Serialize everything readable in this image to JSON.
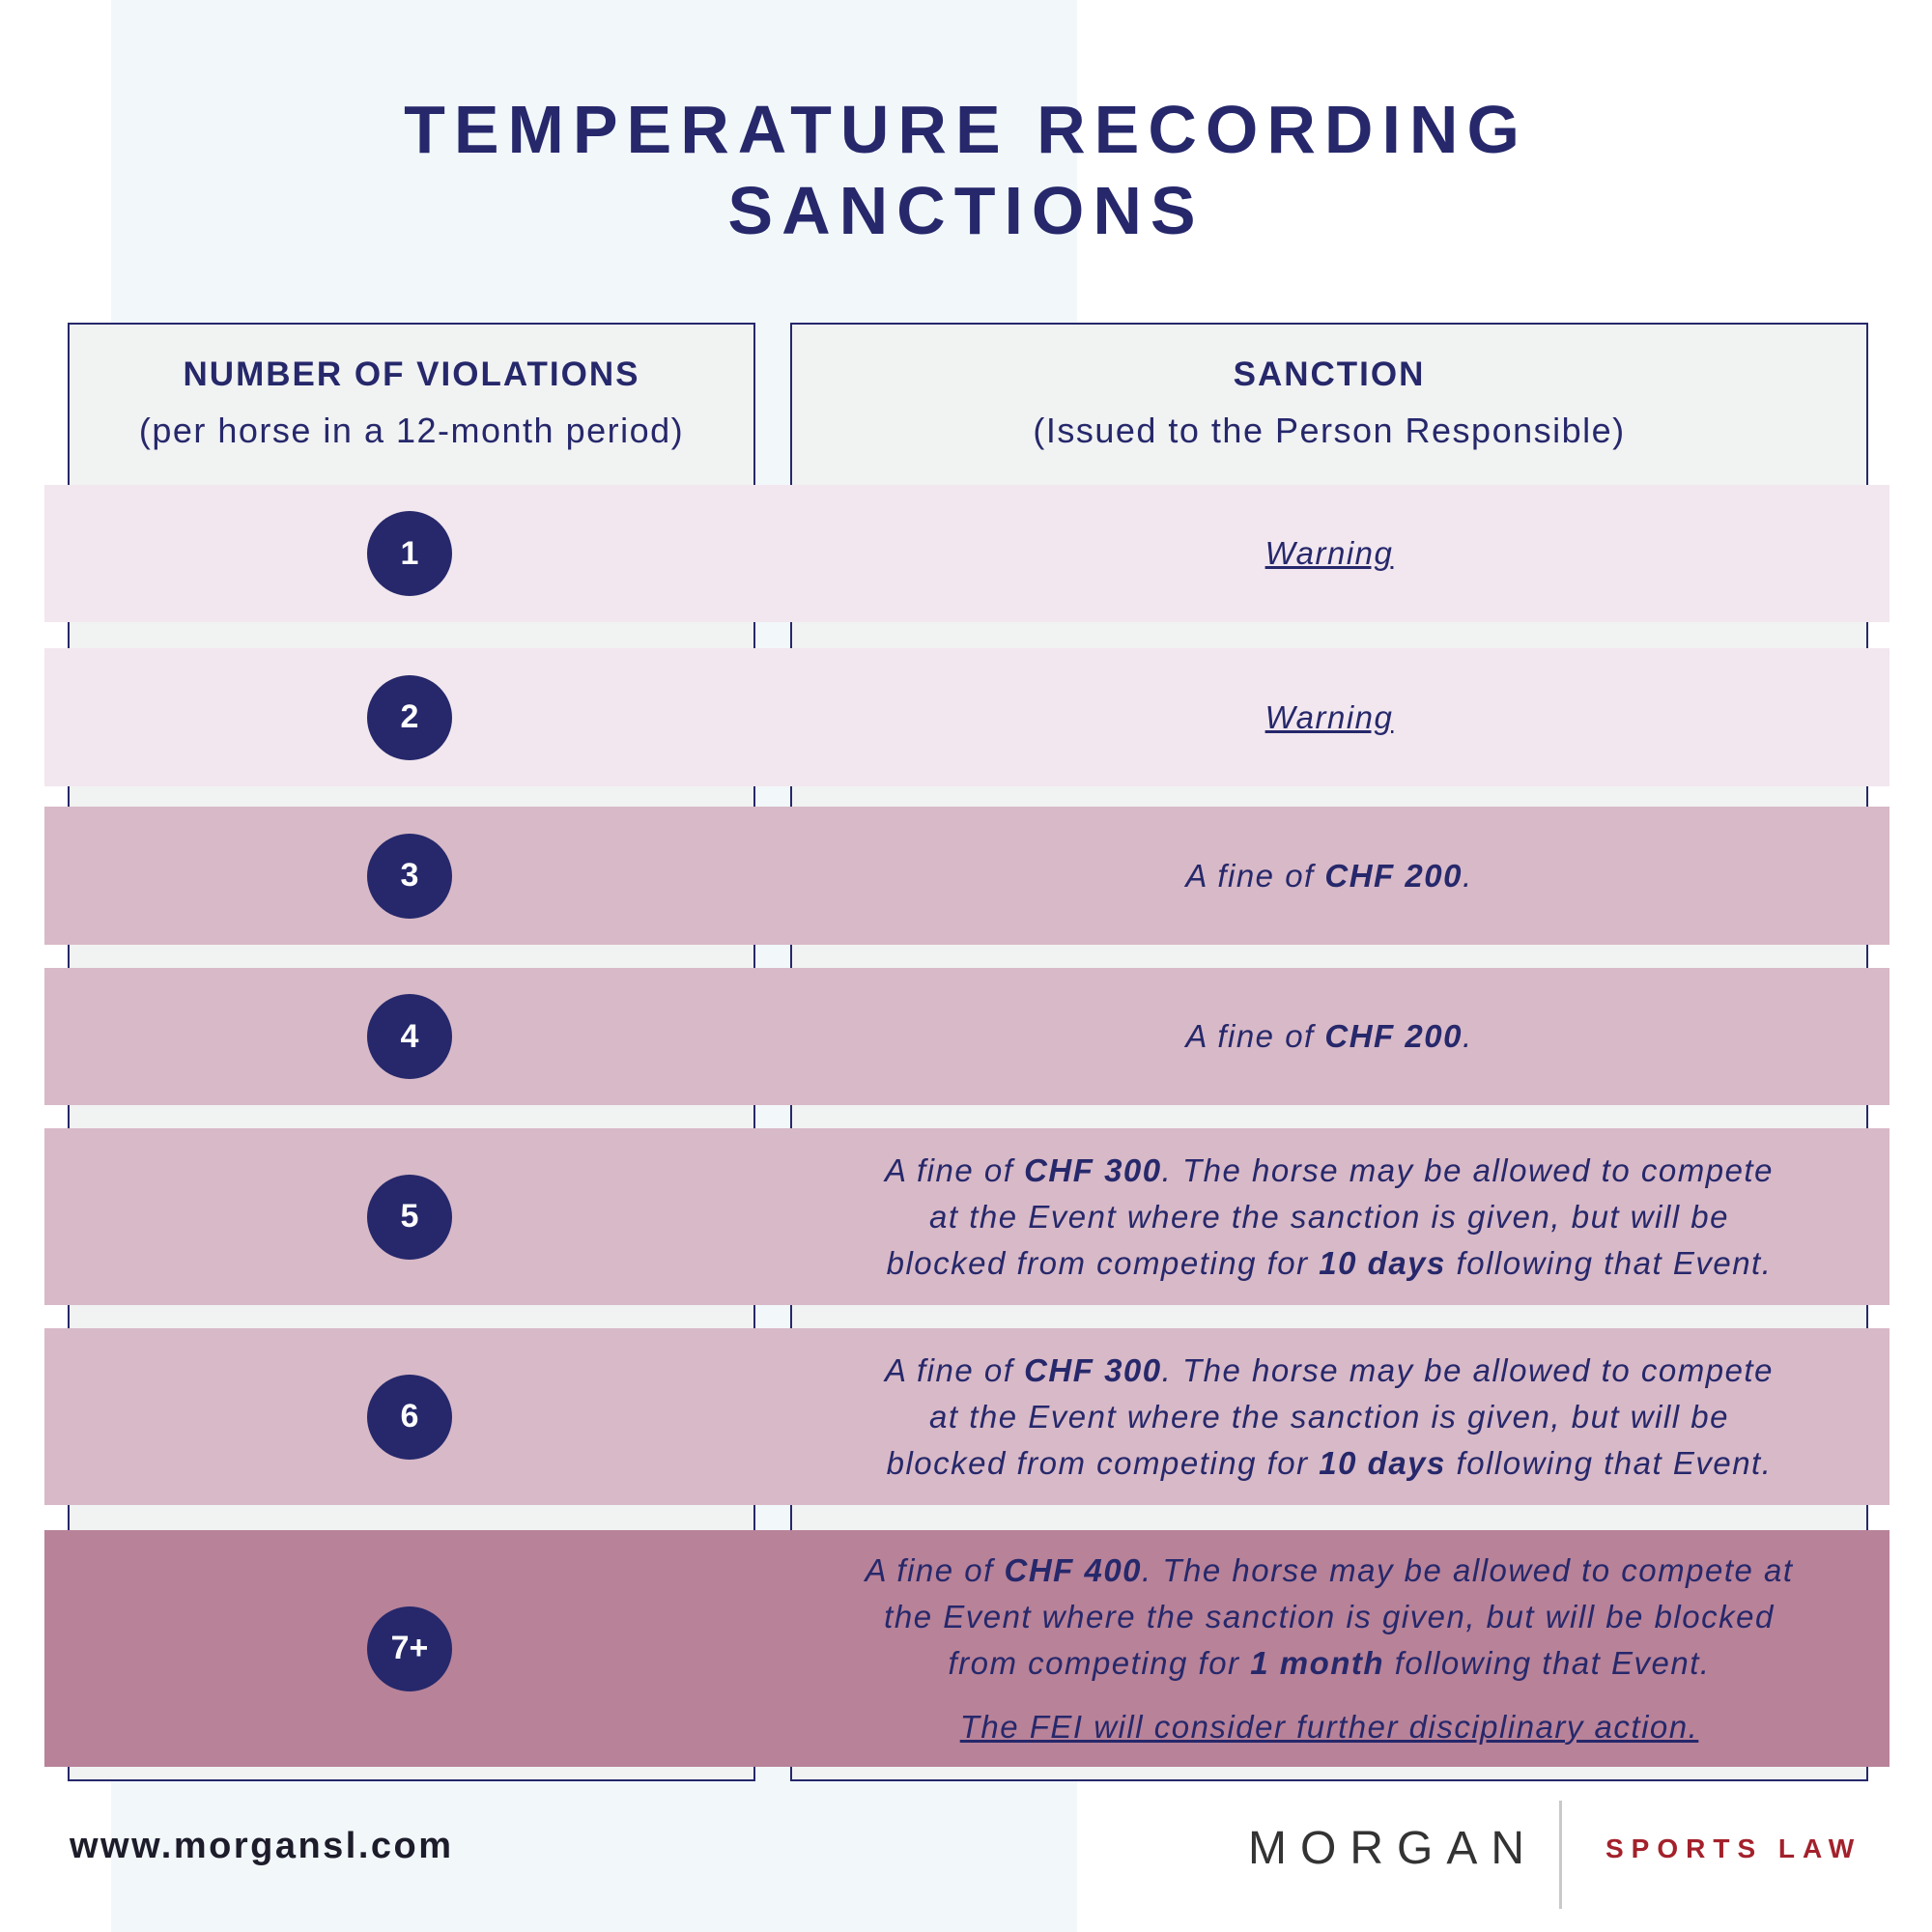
{
  "title": {
    "line1": "TEMPERATURE RECORDING",
    "line2": "SANCTIONS"
  },
  "table": {
    "left_header": {
      "title": "NUMBER OF VIOLATIONS",
      "subtitle": "(per horse in a 12-month period)"
    },
    "right_header": {
      "title": "SANCTION",
      "subtitle": "(Issued to the Person Responsible)"
    },
    "rows": [
      {
        "number": "1",
        "warning": "Warning"
      },
      {
        "number": "2",
        "warning": "Warning"
      },
      {
        "number": "3",
        "line1_pre": "A fine of ",
        "line1_bold": "CHF 200",
        "line1_post": "."
      },
      {
        "number": "4",
        "line1_pre": "A fine of ",
        "line1_bold": "CHF 200",
        "line1_post": "."
      },
      {
        "number": "5",
        "line1_pre": "A fine of ",
        "line1_bold": "CHF 300",
        "line1_post": ". The horse may be allowed to compete",
        "line2": "at the Event where the sanction is given, but will be",
        "line3_pre": "blocked from competing for ",
        "line3_bold": "10 days",
        "line3_post": " following that Event."
      },
      {
        "number": "6",
        "line1_pre": "A fine of ",
        "line1_bold": "CHF 300",
        "line1_post": ". The horse may be allowed to compete",
        "line2": "at the Event where the sanction is given, but will be",
        "line3_pre": "blocked from competing for ",
        "line3_bold": "10 days",
        "line3_post": " following that Event."
      },
      {
        "number": "7+",
        "line1_pre": "A fine of ",
        "line1_bold": "CHF 400",
        "line1_post": ". The horse may be allowed to compete at",
        "line2": "the Event where the sanction is given, but will be blocked",
        "line3_pre": "from competing for ",
        "line3_bold": "1 month",
        "line3_post": " following that Event.",
        "note": "The FEI will consider further disciplinary action."
      }
    ]
  },
  "footer": {
    "website": "www.morgansl.com",
    "brand": "MORGAN",
    "brand_sub": "SPORTS LAW"
  },
  "colors": {
    "navy": "#26286b",
    "row_light": "#f2e7ee",
    "row_medium": "#d8b9c7",
    "row_dark": "#b88298",
    "brand_red": "#a3212b"
  }
}
